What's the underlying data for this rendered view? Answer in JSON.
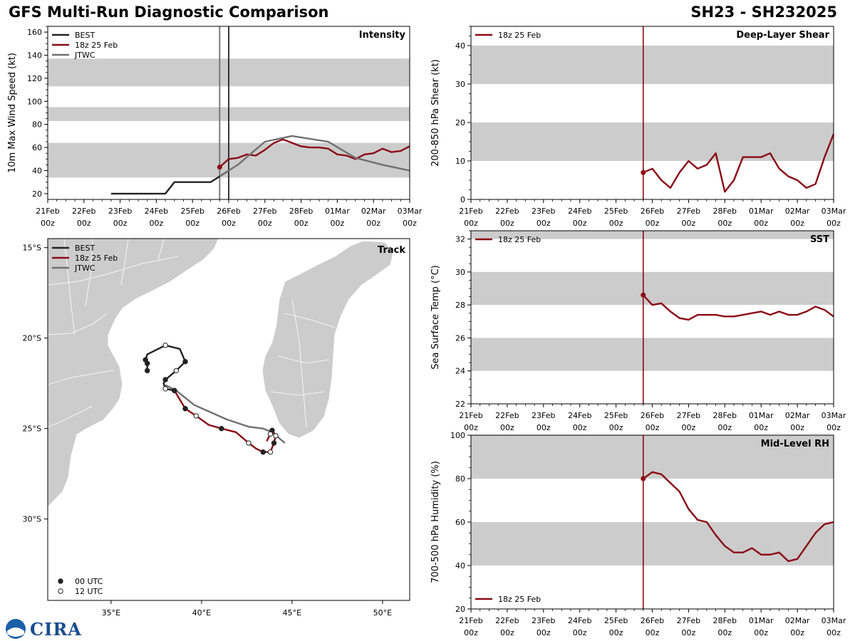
{
  "header": {
    "title": "GFS Multi-Run Diagnostic Comparison",
    "storm_id": "SH23 - SH232025"
  },
  "logo": {
    "text": "CIRA"
  },
  "colors": {
    "best": "#222222",
    "run": "#8b0a14",
    "jtwc": "#707070",
    "band": "#cccccc",
    "land": "#cccccc"
  },
  "time_axis": {
    "tick_labels": [
      "21Feb\n00z",
      "22Feb\n00z",
      "23Feb\n00z",
      "24Feb\n00z",
      "25Feb\n00z",
      "26Feb\n00z",
      "27Feb\n00z",
      "28Feb\n00z",
      "01Mar\n00z",
      "02Mar\n00z",
      "03Mar\n00z"
    ],
    "range_hours": [
      0,
      240
    ],
    "init_hour": 114
  },
  "chart_data": [
    {
      "id": "intensity",
      "type": "line",
      "title": "Intensity",
      "ylabel": "10m Max Wind Speed (kt)",
      "ylim": [
        15,
        165
      ],
      "yticks": [
        20,
        40,
        60,
        80,
        100,
        120,
        140,
        160
      ],
      "bands": [
        [
          34,
          64
        ],
        [
          83,
          95
        ],
        [
          113,
          137
        ]
      ],
      "vlines": [
        {
          "x": 114,
          "series": "JTWC"
        },
        {
          "x": 120,
          "series": "BEST"
        }
      ],
      "legend": [
        "BEST",
        "18z 25 Feb",
        "JTWC"
      ],
      "series": [
        {
          "name": "BEST",
          "x": [
            42,
            48,
            54,
            60,
            66,
            72,
            78,
            84,
            90,
            96,
            102,
            108,
            114,
            120
          ],
          "y": [
            20,
            20,
            20,
            20,
            20,
            20,
            20,
            30,
            30,
            30,
            30,
            30,
            35,
            40
          ]
        },
        {
          "name": "18z 25 Feb",
          "x": [
            114,
            120,
            126,
            132,
            138,
            144,
            150,
            156,
            162,
            168,
            174,
            180,
            186,
            192,
            198,
            204,
            210,
            216,
            222,
            228,
            234,
            240
          ],
          "y": [
            43,
            50,
            51,
            54,
            53,
            58,
            64,
            67,
            64,
            61,
            60,
            60,
            59,
            54,
            53,
            50,
            54,
            55,
            59,
            56,
            57,
            61
          ]
        },
        {
          "name": "JTWC",
          "x": [
            114,
            120,
            126,
            144,
            162,
            186,
            204,
            222,
            240
          ],
          "y": [
            35,
            40,
            45,
            65,
            70,
            65,
            51,
            45,
            40
          ]
        }
      ]
    },
    {
      "id": "shear",
      "type": "line",
      "title": "Deep-Layer Shear",
      "ylabel": "200-850 hPa Shear (kt)",
      "ylim": [
        0,
        45
      ],
      "yticks": [
        0,
        10,
        20,
        30,
        40
      ],
      "bands": [
        [
          10,
          20
        ],
        [
          30,
          40
        ]
      ],
      "legend": [
        "18z 25 Feb"
      ],
      "series": [
        {
          "name": "18z 25 Feb",
          "x": [
            114,
            120,
            126,
            132,
            138,
            144,
            150,
            156,
            162,
            168,
            174,
            180,
            186,
            192,
            198,
            204,
            210,
            216,
            222,
            228,
            234,
            240
          ],
          "y": [
            7,
            8,
            5,
            3,
            7,
            10,
            8,
            9,
            12,
            2,
            5,
            11,
            11,
            11,
            12,
            8,
            6,
            5,
            3,
            4,
            11,
            17
          ]
        }
      ]
    },
    {
      "id": "sst",
      "type": "line",
      "title": "SST",
      "ylabel": "Sea Surface Temp (°C)",
      "ylim": [
        22,
        32.5
      ],
      "yticks": [
        22,
        24,
        26,
        28,
        30,
        32
      ],
      "bands": [
        [
          24,
          26
        ],
        [
          28,
          30
        ],
        [
          32,
          32.5
        ]
      ],
      "legend": [
        "18z 25 Feb"
      ],
      "series": [
        {
          "name": "18z 25 Feb",
          "x": [
            114,
            120,
            126,
            132,
            138,
            144,
            150,
            156,
            162,
            168,
            174,
            180,
            186,
            192,
            198,
            204,
            210,
            216,
            222,
            228,
            234,
            240
          ],
          "y": [
            28.6,
            28.0,
            28.1,
            27.6,
            27.2,
            27.1,
            27.4,
            27.4,
            27.4,
            27.3,
            27.3,
            27.4,
            27.5,
            27.6,
            27.4,
            27.6,
            27.4,
            27.4,
            27.6,
            27.9,
            27.7,
            27.3
          ]
        }
      ]
    },
    {
      "id": "rh",
      "type": "line",
      "title": "Mid-Level RH",
      "ylabel": "700-500 hPa Humidity (%)",
      "ylim": [
        20,
        100
      ],
      "yticks": [
        20,
        40,
        60,
        80,
        100
      ],
      "bands": [
        [
          40,
          60
        ],
        [
          80,
          100
        ]
      ],
      "legend": [
        "18z 25 Feb"
      ],
      "series": [
        {
          "name": "18z 25 Feb",
          "x": [
            114,
            120,
            126,
            132,
            138,
            144,
            150,
            156,
            162,
            168,
            174,
            180,
            186,
            192,
            198,
            204,
            210,
            216,
            222,
            228,
            234,
            240
          ],
          "y": [
            80,
            83,
            82,
            78,
            74,
            66,
            61,
            60,
            54,
            49,
            46,
            46,
            48,
            45,
            45,
            46,
            42,
            43,
            49,
            55,
            59,
            60
          ]
        }
      ]
    },
    {
      "id": "track",
      "type": "line",
      "title": "Track",
      "xlim": [
        31.5,
        51.5
      ],
      "ylim": [
        -34.5,
        -14.5
      ],
      "xticks": [
        35,
        40,
        45,
        50
      ],
      "xtick_labels": [
        "35°E",
        "40°E",
        "45°E",
        "50°E"
      ],
      "yticks": [
        -15,
        -20,
        -25,
        -30
      ],
      "ytick_labels": [
        "15°S",
        "20°S",
        "25°S",
        "30°S"
      ],
      "legend": [
        "BEST",
        "18z 25 Feb",
        "JTWC"
      ],
      "marker_legend": [
        "00 UTC",
        "12 UTC"
      ],
      "series": [
        {
          "name": "BEST",
          "lon": [
            37.0,
            37.0,
            36.9,
            37.0,
            38.0,
            38.8,
            39.1,
            38.8,
            38.6,
            38.0,
            37.9,
            38.0,
            38.5
          ],
          "lat": [
            -21.8,
            -21.4,
            -21.2,
            -20.9,
            -20.4,
            -20.6,
            -21.3,
            -21.6,
            -21.8,
            -22.3,
            -22.5,
            -22.8,
            -22.9
          ],
          "markers": [
            0,
            0,
            0,
            null,
            1,
            null,
            0,
            null,
            1,
            0,
            null,
            1,
            0
          ]
        },
        {
          "name": "18z 25 Feb",
          "lon": [
            38.5,
            39.1,
            39.7,
            40.4,
            41.1,
            41.9,
            42.6,
            43.0,
            43.4,
            43.8,
            44.0,
            44.1,
            43.9,
            43.8,
            43.6
          ],
          "lat": [
            -22.9,
            -23.9,
            -24.3,
            -24.8,
            -25.0,
            -25.2,
            -25.8,
            -26.1,
            -26.3,
            -26.3,
            -25.8,
            -25.4,
            -25.1,
            -25.3,
            -25.7
          ],
          "markers": [
            0,
            0,
            1,
            null,
            0,
            null,
            1,
            null,
            0,
            1,
            0,
            1,
            0,
            1,
            null
          ]
        },
        {
          "name": "JTWC",
          "lon": [
            38.0,
            38.6,
            39.6,
            41.4,
            42.6,
            43.4,
            43.9,
            44.6
          ],
          "lat": [
            -22.6,
            -22.9,
            -23.7,
            -24.5,
            -24.9,
            -25.0,
            -25.2,
            -25.8
          ],
          "markers": [
            null,
            null,
            null,
            null,
            null,
            null,
            null,
            null
          ]
        }
      ]
    }
  ]
}
